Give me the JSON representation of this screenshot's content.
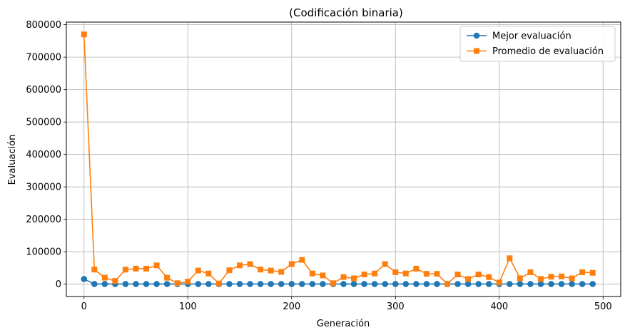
{
  "chart_data": {
    "type": "line",
    "title": "(Codificación binaria)",
    "xlabel": "Generación",
    "ylabel": "Evaluación",
    "xlim": [
      -17,
      517
    ],
    "ylim": [
      -38000,
      808000
    ],
    "xticks": [
      0,
      100,
      200,
      300,
      400,
      500
    ],
    "yticks": [
      0,
      100000,
      200000,
      300000,
      400000,
      500000,
      600000,
      700000,
      800000
    ],
    "grid": true,
    "legend_position": "top-right",
    "x": [
      0,
      10,
      20,
      30,
      40,
      50,
      60,
      70,
      80,
      90,
      100,
      110,
      120,
      130,
      140,
      150,
      160,
      170,
      180,
      190,
      200,
      210,
      220,
      230,
      240,
      250,
      260,
      270,
      280,
      290,
      300,
      310,
      320,
      330,
      340,
      350,
      360,
      370,
      380,
      390,
      400,
      410,
      420,
      430,
      440,
      450,
      460,
      470,
      480,
      490
    ],
    "series": [
      {
        "name": "Mejor evaluación",
        "color": "#1f77b4",
        "marker": "circle",
        "values": [
          16000,
          500,
          500,
          500,
          500,
          500,
          500,
          500,
          500,
          500,
          500,
          500,
          500,
          500,
          500,
          500,
          500,
          500,
          500,
          500,
          500,
          500,
          500,
          500,
          500,
          500,
          500,
          500,
          500,
          500,
          500,
          500,
          500,
          500,
          500,
          500,
          500,
          500,
          500,
          500,
          500,
          500,
          500,
          500,
          500,
          500,
          500,
          500,
          500,
          500
        ]
      },
      {
        "name": "Promedio de evaluación",
        "color": "#ff7f0e",
        "marker": "square",
        "values": [
          770000,
          45000,
          20000,
          10000,
          45000,
          48000,
          48000,
          58000,
          20000,
          3000,
          8000,
          42000,
          33000,
          2000,
          43000,
          58000,
          62000,
          45000,
          42000,
          38000,
          62000,
          75000,
          33000,
          27000,
          3000,
          22000,
          18000,
          30000,
          33000,
          62000,
          37000,
          33000,
          48000,
          32000,
          32000,
          1000,
          30000,
          16000,
          30000,
          22000,
          5000,
          80000,
          18000,
          37000,
          16000,
          23000,
          24000,
          18000,
          37000,
          35000
        ]
      }
    ]
  }
}
